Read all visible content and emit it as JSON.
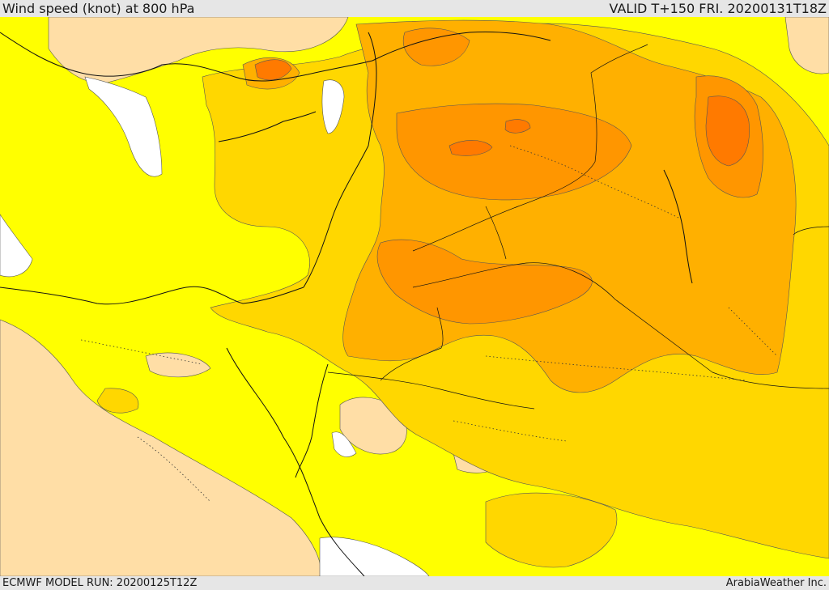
{
  "header": {
    "title": "Wind speed (knot) at 800 hPa",
    "valid": "VALID T+150 FRI. 20200131T18Z"
  },
  "footer": {
    "model_run": "ECMWF MODEL RUN: 20200125T12Z",
    "credit": "ArabiaWeather Inc."
  },
  "colors": {
    "background": "#e6e6e6",
    "band_0": "#ffdea6",
    "band_1": "#ffff00",
    "band_2": "#ffd700",
    "band_3": "#ffb000",
    "band_4": "#ff9600",
    "band_5": "#ff7a00",
    "no_data": "#ffffff"
  }
}
